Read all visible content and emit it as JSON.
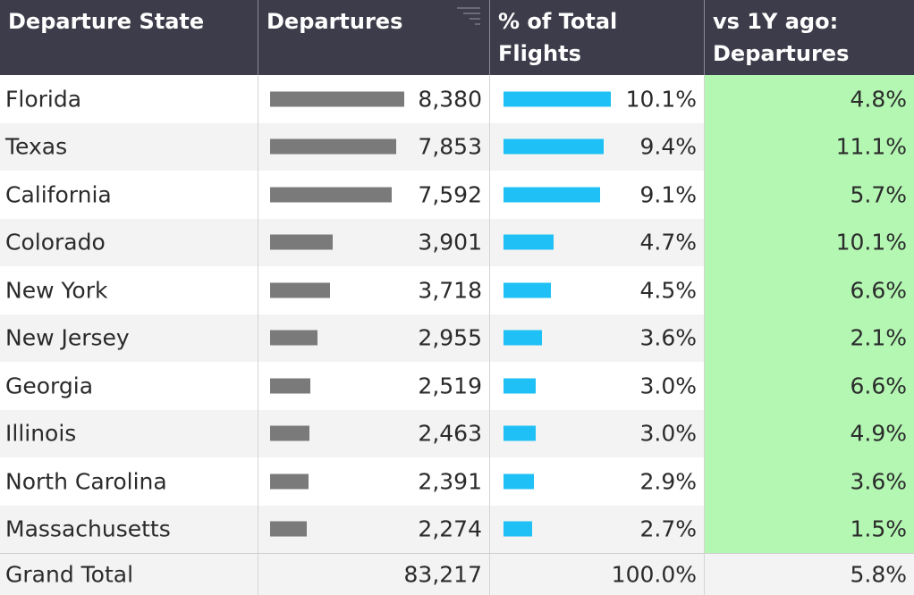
{
  "header": {
    "col_state": "Departure State",
    "col_departures": "Departures",
    "col_pct": "% of Total Flights",
    "col_vs": "vs 1Y ago: Departures"
  },
  "rows": [
    {
      "state": "Florida",
      "departures": "8,380",
      "pct": "10.1%",
      "vs": "4.8%",
      "dep_value": 8380,
      "pct_value": 10.1
    },
    {
      "state": "Texas",
      "departures": "7,853",
      "pct": "9.4%",
      "vs": "11.1%",
      "dep_value": 7853,
      "pct_value": 9.4
    },
    {
      "state": "California",
      "departures": "7,592",
      "pct": "9.1%",
      "vs": "5.7%",
      "dep_value": 7592,
      "pct_value": 9.1
    },
    {
      "state": "Colorado",
      "departures": "3,901",
      "pct": "4.7%",
      "vs": "10.1%",
      "dep_value": 3901,
      "pct_value": 4.7
    },
    {
      "state": "New York",
      "departures": "3,718",
      "pct": "4.5%",
      "vs": "6.6%",
      "dep_value": 3718,
      "pct_value": 4.5
    },
    {
      "state": "New Jersey",
      "departures": "2,955",
      "pct": "3.6%",
      "vs": "2.1%",
      "dep_value": 2955,
      "pct_value": 3.6
    },
    {
      "state": "Georgia",
      "departures": "2,519",
      "pct": "3.0%",
      "vs": "6.6%",
      "dep_value": 2519,
      "pct_value": 3.0
    },
    {
      "state": "Illinois",
      "departures": "2,463",
      "pct": "3.0%",
      "vs": "4.9%",
      "dep_value": 2463,
      "pct_value": 3.0
    },
    {
      "state": "North Carolina",
      "departures": "2,391",
      "pct": "2.9%",
      "vs": "3.6%",
      "dep_value": 2391,
      "pct_value": 2.9
    },
    {
      "state": "Massachusetts",
      "departures": "2,274",
      "pct": "2.7%",
      "vs": "1.5%",
      "dep_value": 2274,
      "pct_value": 2.7
    }
  ],
  "total": {
    "label": "Grand Total",
    "departures": "83,217",
    "pct": "100.0%",
    "vs": "5.8%"
  },
  "icons": {
    "sort": "sort-descending-icon"
  },
  "colors": {
    "header_bg": "#3d3c4a",
    "departures_bar": "#7a7a7a",
    "pct_bar": "#1ec0f5",
    "vs_positive_bg": "#b3f7b2"
  }
}
